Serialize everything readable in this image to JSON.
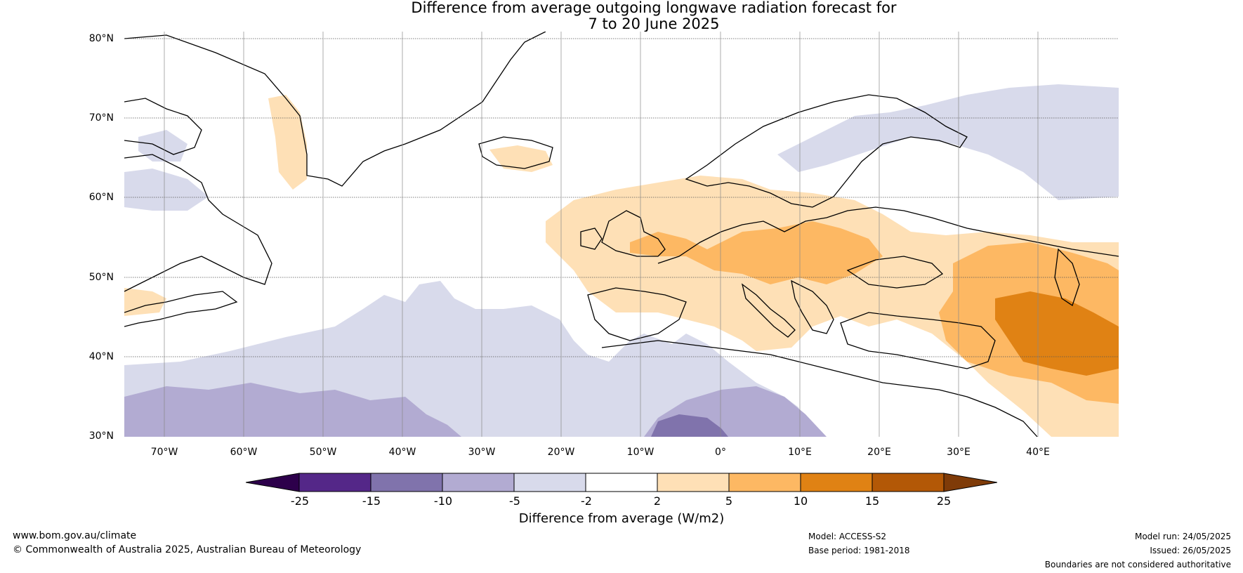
{
  "title": {
    "line1": "Difference from average outgoing longwave radiation forecast for",
    "line2": "7 to 20 June 2025"
  },
  "map": {
    "lat_labels": [
      "80°N",
      "70°N",
      "60°N",
      "50°N",
      "40°N",
      "30°N"
    ],
    "lon_labels": [
      "70°W",
      "60°W",
      "50°W",
      "40°W",
      "30°W",
      "20°W",
      "10°W",
      "0°",
      "10°E",
      "20°E",
      "30°E",
      "40°E"
    ],
    "extent": {
      "lon": [
        -75,
        50
      ],
      "lat": [
        30,
        81
      ]
    },
    "gridlines": true
  },
  "colorbar": {
    "ticks": [
      "-25",
      "-15",
      "-10",
      "-5",
      "-2",
      "2",
      "5",
      "10",
      "15",
      "25"
    ],
    "colors": [
      "#2d004b",
      "#542788",
      "#8073ac",
      "#b2abd2",
      "#d8daeb",
      "#ffffff",
      "#fee0b6",
      "#fdb863",
      "#e08214",
      "#b35806",
      "#7f3b08"
    ],
    "label": "Difference from average (W/m2)"
  },
  "footer": {
    "website": "www.bom.gov.au/climate",
    "copyright": "© Commonwealth of Australia 2025, Australian Bureau of Meteorology",
    "model": "Model: ACCESS-S2",
    "base_period": "Base period: 1981-2018",
    "model_run": "Model run: 24/05/2025",
    "issued": "Issued: 26/05/2025",
    "disclaimer": "Boundaries are not considered authoritative"
  }
}
